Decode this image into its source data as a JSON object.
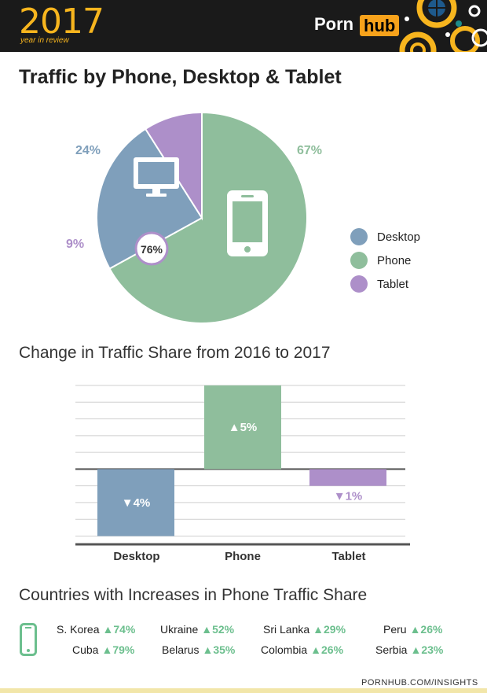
{
  "header": {
    "year": "2017",
    "subtitle": "year in review",
    "logo_left": "Porn",
    "logo_right": "hub"
  },
  "title": "Traffic by Phone, Desktop & Tablet",
  "colors": {
    "desktop": "#7f9fbb",
    "phone": "#8fbe9c",
    "tablet": "#ad8fc9",
    "accent": "#f7a21b",
    "up": "#6cbf8e"
  },
  "chart_data": [
    {
      "type": "pie",
      "slices": [
        {
          "name": "Phone",
          "value": 67,
          "label": "67%",
          "color": "#8fbe9c",
          "icon": "smartphone-icon"
        },
        {
          "name": "Desktop",
          "value": 24,
          "label": "24%",
          "color": "#7f9fbb",
          "icon": "monitor-icon"
        },
        {
          "name": "Tablet",
          "value": 9,
          "label": "9%",
          "color": "#ad8fc9",
          "icon": "tablet-icon"
        }
      ],
      "annotation": "76%",
      "legend": [
        "Desktop",
        "Phone",
        "Tablet"
      ],
      "legend_position": "right"
    },
    {
      "type": "bar",
      "title": "Change in Traffic Share from 2016 to 2017",
      "categories": [
        "Desktop",
        "Phone",
        "Tablet"
      ],
      "values": [
        -4,
        5,
        -1
      ],
      "data_labels": [
        "▼4%",
        "▲5%",
        "▼1%"
      ],
      "colors": [
        "#7f9fbb",
        "#8fbe9c",
        "#ad8fc9"
      ],
      "ylim": [
        -4.4,
        5
      ],
      "grid": true
    }
  ],
  "countries_section": {
    "title": "Countries with Increases in Phone Traffic Share",
    "icon": "smartphone-icon",
    "rows": [
      [
        {
          "name": "S. Korea",
          "value": "▲74%"
        },
        {
          "name": "Ukraine",
          "value": "▲52%"
        },
        {
          "name": "Sri Lanka",
          "value": "▲29%"
        },
        {
          "name": "Peru",
          "value": "▲26%"
        }
      ],
      [
        {
          "name": "Cuba",
          "value": "▲79%"
        },
        {
          "name": "Belarus",
          "value": "▲35%"
        },
        {
          "name": "Colombia",
          "value": "▲26%"
        },
        {
          "name": "Serbia",
          "value": "▲23%"
        }
      ]
    ]
  },
  "footer": "PORNHUB.COM/INSIGHTS"
}
